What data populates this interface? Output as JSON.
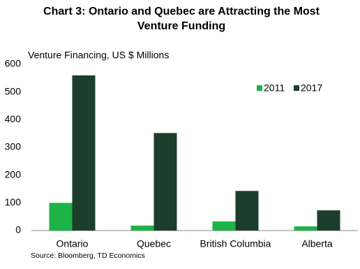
{
  "chart_data": {
    "type": "bar",
    "title": "Chart 3: Ontario and Quebec are Attracting the Most Venture Funding",
    "y_label": "Venture Financing, US $ Millions",
    "source": "Source: Bloomberg,  TD Economics",
    "categories": [
      "Ontario",
      "Quebec",
      "British Columbia",
      "Alberta"
    ],
    "series": [
      {
        "name": "2011",
        "color": "#1db346",
        "values": [
          100,
          18,
          33,
          15
        ]
      },
      {
        "name": "2017",
        "color": "#1b3f2a",
        "values": [
          560,
          352,
          143,
          73
        ]
      }
    ],
    "ylim": [
      0,
      600
    ],
    "yticks": [
      0,
      100,
      200,
      300,
      400,
      500,
      600
    ],
    "grid": false,
    "legend": "upper right"
  }
}
